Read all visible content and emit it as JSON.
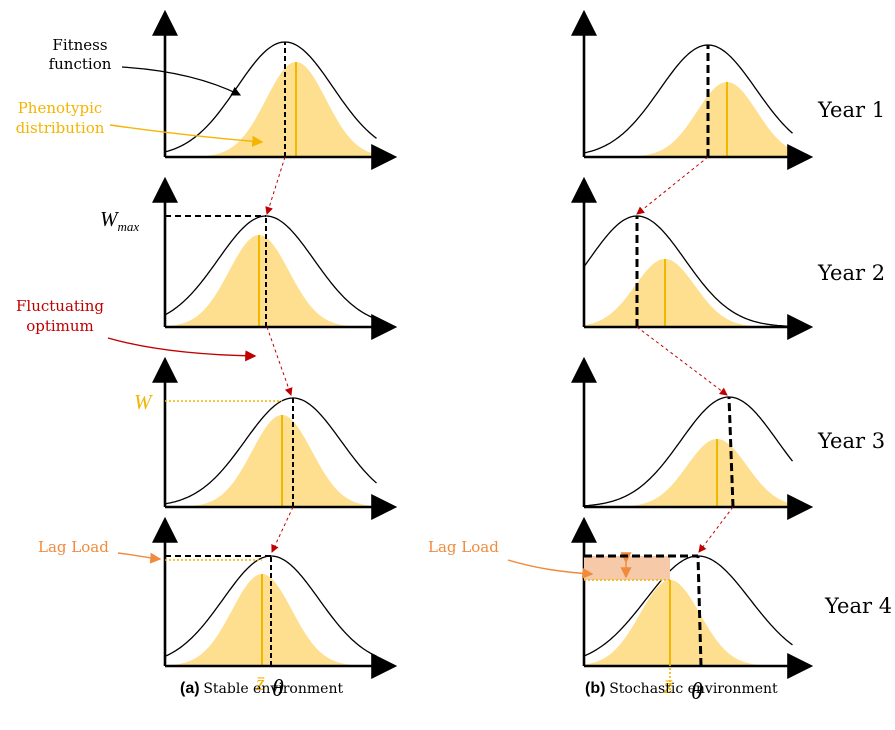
{
  "colors": {
    "phenotype_fill": "#fddf8f",
    "mean_line": "#f2b800",
    "annotation_yellow": "#f4b400",
    "annotation_red": "#c00000",
    "lag_load_orange": "#f08a3c",
    "lag_load_box": "#f6c9a8"
  },
  "annotations": {
    "fitness_function": [
      "Fitness",
      "function"
    ],
    "phenotypic_distribution": [
      "Phenotypic",
      "distribution"
    ],
    "fluctuating_optimum": [
      "Fluctuating",
      "optimum"
    ],
    "w_max": "W",
    "w_max_sub": "max",
    "w": "W",
    "lag_load_a": "Lag Load",
    "lag_load_b": "Lag Load",
    "z_bar_a": "z̄",
    "theta_a": "θ",
    "z_bar_b": "z̄",
    "theta_b": "θ"
  },
  "years": [
    "Year 1",
    "Year 2",
    "Year 3",
    "Year 4"
  ],
  "captions": {
    "a_tag": "(a)",
    "a_text": "Stable environment",
    "b_tag": "(b)",
    "b_text": "Stochastic environment"
  }
}
